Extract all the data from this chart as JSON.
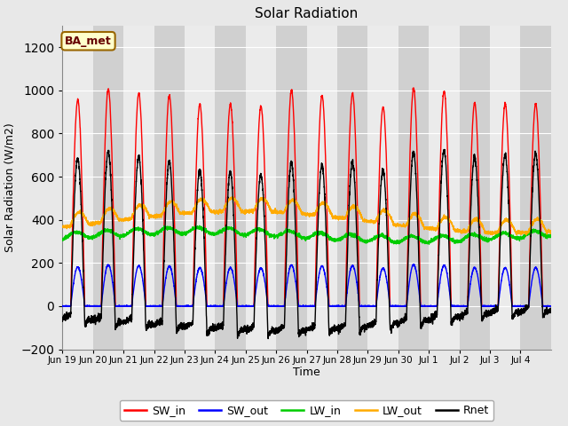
{
  "title": "Solar Radiation",
  "xlabel": "Time",
  "ylabel": "Solar Radiation (W/m2)",
  "ylim": [
    -200,
    1300
  ],
  "yticks": [
    -200,
    0,
    200,
    400,
    600,
    800,
    1000,
    1200
  ],
  "annotation": "BA_met",
  "fig_bg": "#e8e8e8",
  "plot_bg": "#d8d8d8",
  "band_white": "#ebebeb",
  "band_gray": "#d0d0d0",
  "colors": {
    "SW_in": "#ff0000",
    "SW_out": "#0000ff",
    "LW_in": "#00cc00",
    "LW_out": "#ffaa00",
    "Rnet": "#000000"
  },
  "legend_labels": [
    "SW_in",
    "SW_out",
    "LW_in",
    "LW_out",
    "Rnet"
  ],
  "n_days": 16,
  "n_per_day": 288
}
